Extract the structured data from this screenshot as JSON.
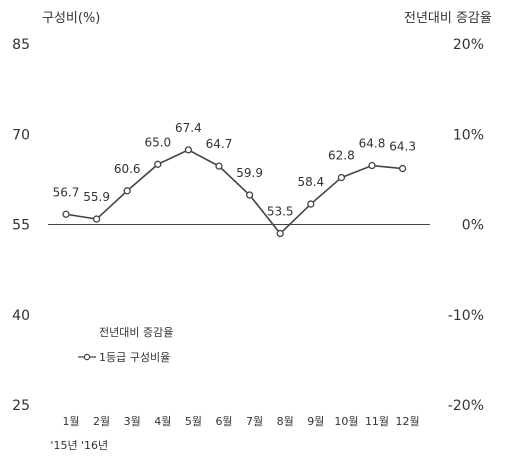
{
  "chart_data": {
    "type": "line",
    "y_left_label": "구성비(%)",
    "y_right_label": "전년대비 증감율",
    "y_left_ticks": [
      "85",
      "70",
      "55",
      "40",
      "25"
    ],
    "y_left_range": [
      25,
      85
    ],
    "y_right_ticks": [
      "20%",
      "10%",
      "0%",
      "-10%",
      "-20%"
    ],
    "y_right_range": [
      -20,
      20
    ],
    "categories": [
      "1월",
      "2월",
      "3월",
      "4월",
      "5월",
      "6월",
      "7월",
      "8월",
      "9월",
      "10월",
      "11월",
      "12월"
    ],
    "year_labels": [
      "'15년",
      "'16년"
    ],
    "series": [
      {
        "name": "1등급 구성비율",
        "axis": "left",
        "values": [
          56.7,
          55.9,
          60.6,
          65.0,
          67.4,
          64.7,
          59.9,
          53.5,
          58.4,
          62.8,
          64.8,
          64.3
        ],
        "labels": [
          "56.7",
          "55.9",
          "60.6",
          "65.0",
          "67.4",
          "64.7",
          "59.9",
          "53.5",
          "58.4",
          "62.8",
          "64.8",
          "64.3"
        ],
        "color": "#444444"
      },
      {
        "name": "전년대비 증감율",
        "axis": "right",
        "values": [
          0,
          0,
          0,
          0,
          0,
          0,
          0,
          0,
          0,
          0,
          0,
          0
        ],
        "color": "#444444"
      }
    ],
    "legend_position": "bottom-left"
  }
}
